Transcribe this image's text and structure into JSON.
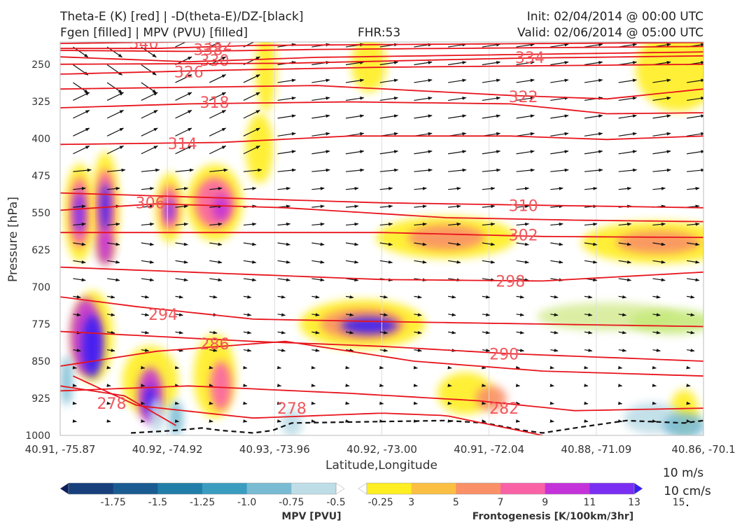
{
  "header": {
    "title_left_1": "Theta-E (K) [red] | -D(theta-E)/DZ-[black]",
    "title_left_2": "Fgen [filled] | MPV (PVU) [filled]",
    "title_center": "FHR:53",
    "title_right_1": "Init: 02/04/2014 @ 00:00 UTC",
    "title_right_2": "Valid: 02/06/2014 @ 05:00 UTC"
  },
  "chart_data": {
    "type": "contour-cross-section",
    "xlabel": "Latitude,Longitude",
    "ylabel": "Pressure [hPa]",
    "x_ticks": [
      "40.91, -75.87",
      "40.92, -74.92",
      "40.93, -73.96",
      "40.92, -73.00",
      "40.91, -72.04",
      "40.88, -71.09",
      "40.86, -70.1"
    ],
    "y_ticks": [
      250,
      325,
      400,
      475,
      550,
      625,
      700,
      775,
      850,
      925,
      1000
    ],
    "y_range": [
      1000,
      205
    ],
    "theta_e_contours": [
      {
        "label": "340",
        "label_x": 0.13,
        "label_p": 207,
        "pts": [
          [
            0,
            208
          ],
          [
            0.3,
            203
          ],
          [
            1,
            200
          ]
        ]
      },
      {
        "label": "342",
        "label_x": 0.245,
        "label_p": 210,
        "pts": [
          [
            0,
            218
          ],
          [
            0.15,
            218
          ],
          [
            0.3,
            212
          ],
          [
            1,
            206
          ]
        ]
      },
      {
        "label": "338",
        "label_x": 0.23,
        "label_p": 220,
        "pts": [
          [
            0,
            222
          ],
          [
            0.2,
            224
          ],
          [
            0.4,
            220
          ],
          [
            1,
            214
          ]
        ]
      },
      {
        "label": "330",
        "label_x": 0.24,
        "label_p": 242,
        "pts": [
          [
            0,
            235
          ],
          [
            0.2,
            245
          ],
          [
            0.4,
            236
          ],
          [
            1,
            225
          ]
        ]
      },
      {
        "label": "334",
        "label_x": 0.73,
        "label_p": 236,
        "pts": [
          [
            0,
            250
          ],
          [
            0.35,
            248
          ],
          [
            0.7,
            238
          ],
          [
            1,
            233
          ]
        ]
      },
      {
        "label": "326",
        "label_x": 0.2,
        "label_p": 265,
        "pts": [
          [
            0,
            270
          ],
          [
            0.25,
            262
          ],
          [
            0.5,
            256
          ],
          [
            1,
            250
          ]
        ]
      },
      {
        "label": "322",
        "label_x": 0.72,
        "label_p": 315,
        "pts": [
          [
            0,
            300
          ],
          [
            0.4,
            293
          ],
          [
            0.7,
            313
          ],
          [
            0.85,
            320
          ],
          [
            1,
            300
          ]
        ]
      },
      {
        "label": "318",
        "label_x": 0.24,
        "label_p": 327,
        "pts": [
          [
            0,
            338
          ],
          [
            0.2,
            330
          ],
          [
            0.45,
            326
          ],
          [
            0.7,
            330
          ],
          [
            0.85,
            350
          ],
          [
            1,
            348
          ]
        ]
      },
      {
        "label": "314",
        "label_x": 0.19,
        "label_p": 410,
        "pts": [
          [
            0,
            412
          ],
          [
            0.25,
            408
          ],
          [
            0.45,
            395
          ],
          [
            0.7,
            395
          ],
          [
            0.85,
            402
          ],
          [
            1,
            395
          ]
        ]
      },
      {
        "label": "310",
        "label_x": 0.72,
        "label_p": 535,
        "pts": [
          [
            0,
            510
          ],
          [
            0.25,
            520
          ],
          [
            0.5,
            530
          ],
          [
            0.75,
            535
          ],
          [
            1,
            540
          ]
        ]
      },
      {
        "label": "306",
        "label_x": 0.14,
        "label_p": 530,
        "pts": [
          [
            0,
            545
          ],
          [
            0.15,
            532
          ],
          [
            0.35,
            540
          ],
          [
            0.6,
            560
          ],
          [
            0.8,
            565
          ],
          [
            1,
            568
          ]
        ]
      },
      {
        "label": "302",
        "label_x": 0.72,
        "label_p": 595,
        "pts": [
          [
            0,
            590
          ],
          [
            0.2,
            590
          ],
          [
            0.5,
            590
          ],
          [
            0.75,
            598
          ],
          [
            1,
            600
          ]
        ]
      },
      {
        "label": "298",
        "label_x": 0.7,
        "label_p": 688,
        "pts": [
          [
            0,
            660
          ],
          [
            0.2,
            670
          ],
          [
            0.5,
            685
          ],
          [
            0.75,
            688
          ],
          [
            1,
            670
          ]
        ]
      },
      {
        "label": "294",
        "label_x": 0.16,
        "label_p": 755,
        "pts": [
          [
            0,
            720
          ],
          [
            0.12,
            740
          ],
          [
            0.3,
            765
          ],
          [
            0.5,
            770
          ],
          [
            0.75,
            775
          ],
          [
            1,
            780
          ]
        ]
      },
      {
        "label": "290",
        "label_x": 0.69,
        "label_p": 835,
        "pts": [
          [
            0,
            790
          ],
          [
            0.15,
            800
          ],
          [
            0.3,
            810
          ],
          [
            0.5,
            820
          ],
          [
            0.7,
            835
          ],
          [
            1,
            850
          ]
        ]
      },
      {
        "label": "286",
        "label_x": 0.24,
        "label_p": 815,
        "pts": [
          [
            0,
            860
          ],
          [
            0.15,
            830
          ],
          [
            0.35,
            810
          ],
          [
            0.55,
            850
          ],
          [
            0.75,
            870
          ],
          [
            1,
            880
          ]
        ]
      },
      {
        "label": "282",
        "label_x": 0.69,
        "label_p": 945,
        "pts": [
          [
            0,
            910
          ],
          [
            0.2,
            900
          ],
          [
            0.45,
            915
          ],
          [
            0.65,
            930
          ],
          [
            0.8,
            950
          ],
          [
            1,
            945
          ]
        ]
      },
      {
        "label": "278",
        "label_x": 0.36,
        "label_p": 945,
        "pts": [
          [
            0.02,
            880
          ],
          [
            0.12,
            940
          ],
          [
            0.3,
            965
          ],
          [
            0.5,
            955
          ],
          [
            0.6,
            960
          ],
          [
            0.75,
            1000
          ]
        ]
      },
      {
        "label": "278",
        "label_x": 0.08,
        "label_p": 935,
        "pts": [
          [
            0,
            900
          ],
          [
            0.1,
            920
          ],
          [
            0.18,
            980
          ]
        ]
      }
    ],
    "colorbar_mpv": {
      "label": "MPV [PVU]",
      "ticks": [
        "-1.75",
        "-1.5",
        "-1.25",
        "-1.0",
        "-0.75",
        "-0.5",
        "-0.25"
      ],
      "colors": [
        "#0b1f5e",
        "#163f7c",
        "#1a5c91",
        "#217ea8",
        "#3a9dc0",
        "#79bbd3",
        "#bedde7",
        "#ffffff"
      ]
    },
    "colorbar_fgen": {
      "label": "Frontogenesis [K/100km/3hr]",
      "ticks": [
        "3",
        "5",
        "7",
        "9",
        "11",
        "13",
        "15"
      ],
      "colors": [
        "#ffffff",
        "#ffee22",
        "#fbbf44",
        "#f99067",
        "#fa62a6",
        "#c333d9",
        "#7a2ef2",
        "#3a1df5"
      ]
    },
    "wind_reference": {
      "label": "10 m/s",
      "label2": "10 cm/s"
    }
  }
}
